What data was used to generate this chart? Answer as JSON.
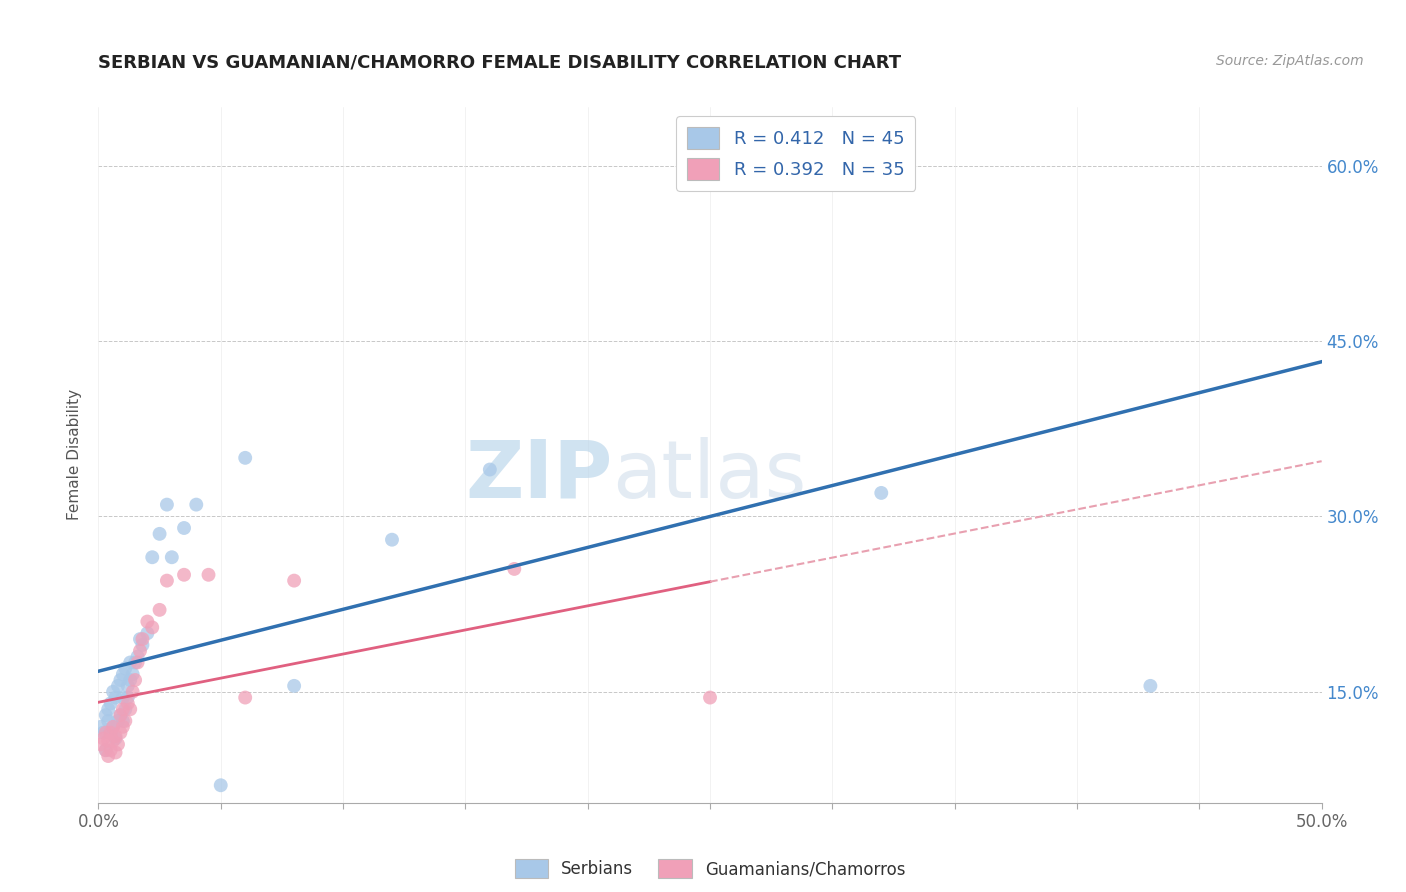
{
  "title": "SERBIAN VS GUAMANIAN/CHAMORRO FEMALE DISABILITY CORRELATION CHART",
  "source": "Source: ZipAtlas.com",
  "ylabel": "Female Disability",
  "xlim": [
    0.0,
    0.5
  ],
  "ylim": [
    0.055,
    0.65
  ],
  "ytick_positions": [
    0.15,
    0.3,
    0.45,
    0.6
  ],
  "ytick_labels": [
    "15.0%",
    "30.0%",
    "45.0%",
    "60.0%"
  ],
  "legend1_label": "R = 0.412   N = 45",
  "legend2_label": "R = 0.392   N = 35",
  "legend_xlabel": "Serbians",
  "legend_ylabel": "Guamanians/Chamorros",
  "serbian_color": "#A8C8E8",
  "guamanian_color": "#F0A0B8",
  "serbian_line_color": "#3070B0",
  "guamanian_line_color": "#E06080",
  "guamanian_dash_color": "#E8A0B0",
  "watermark_zip": "ZIP",
  "watermark_atlas": "atlas",
  "serbian_x": [
    0.001,
    0.002,
    0.003,
    0.003,
    0.004,
    0.004,
    0.005,
    0.005,
    0.006,
    0.006,
    0.007,
    0.007,
    0.008,
    0.008,
    0.009,
    0.009,
    0.01,
    0.01,
    0.01,
    0.011,
    0.011,
    0.012,
    0.012,
    0.013,
    0.013,
    0.014,
    0.015,
    0.016,
    0.017,
    0.018,
    0.02,
    0.022,
    0.025,
    0.028,
    0.03,
    0.035,
    0.04,
    0.05,
    0.06,
    0.08,
    0.12,
    0.16,
    0.24,
    0.32,
    0.43
  ],
  "serbian_y": [
    0.12,
    0.115,
    0.13,
    0.1,
    0.125,
    0.135,
    0.115,
    0.14,
    0.12,
    0.15,
    0.11,
    0.145,
    0.125,
    0.155,
    0.13,
    0.16,
    0.125,
    0.145,
    0.165,
    0.135,
    0.17,
    0.145,
    0.155,
    0.16,
    0.175,
    0.165,
    0.175,
    0.18,
    0.195,
    0.19,
    0.2,
    0.265,
    0.285,
    0.31,
    0.265,
    0.29,
    0.31,
    0.07,
    0.35,
    0.155,
    0.28,
    0.34,
    0.61,
    0.32,
    0.155
  ],
  "guamanian_x": [
    0.001,
    0.002,
    0.003,
    0.003,
    0.004,
    0.004,
    0.005,
    0.005,
    0.006,
    0.006,
    0.007,
    0.007,
    0.008,
    0.009,
    0.009,
    0.01,
    0.01,
    0.011,
    0.012,
    0.013,
    0.014,
    0.015,
    0.016,
    0.017,
    0.018,
    0.02,
    0.022,
    0.025,
    0.028,
    0.035,
    0.045,
    0.06,
    0.08,
    0.17,
    0.25
  ],
  "guamanian_y": [
    0.105,
    0.11,
    0.1,
    0.115,
    0.108,
    0.095,
    0.1,
    0.115,
    0.108,
    0.12,
    0.098,
    0.112,
    0.105,
    0.115,
    0.13,
    0.12,
    0.135,
    0.125,
    0.14,
    0.135,
    0.15,
    0.16,
    0.175,
    0.185,
    0.195,
    0.21,
    0.205,
    0.22,
    0.245,
    0.25,
    0.25,
    0.145,
    0.245,
    0.255,
    0.145
  ]
}
